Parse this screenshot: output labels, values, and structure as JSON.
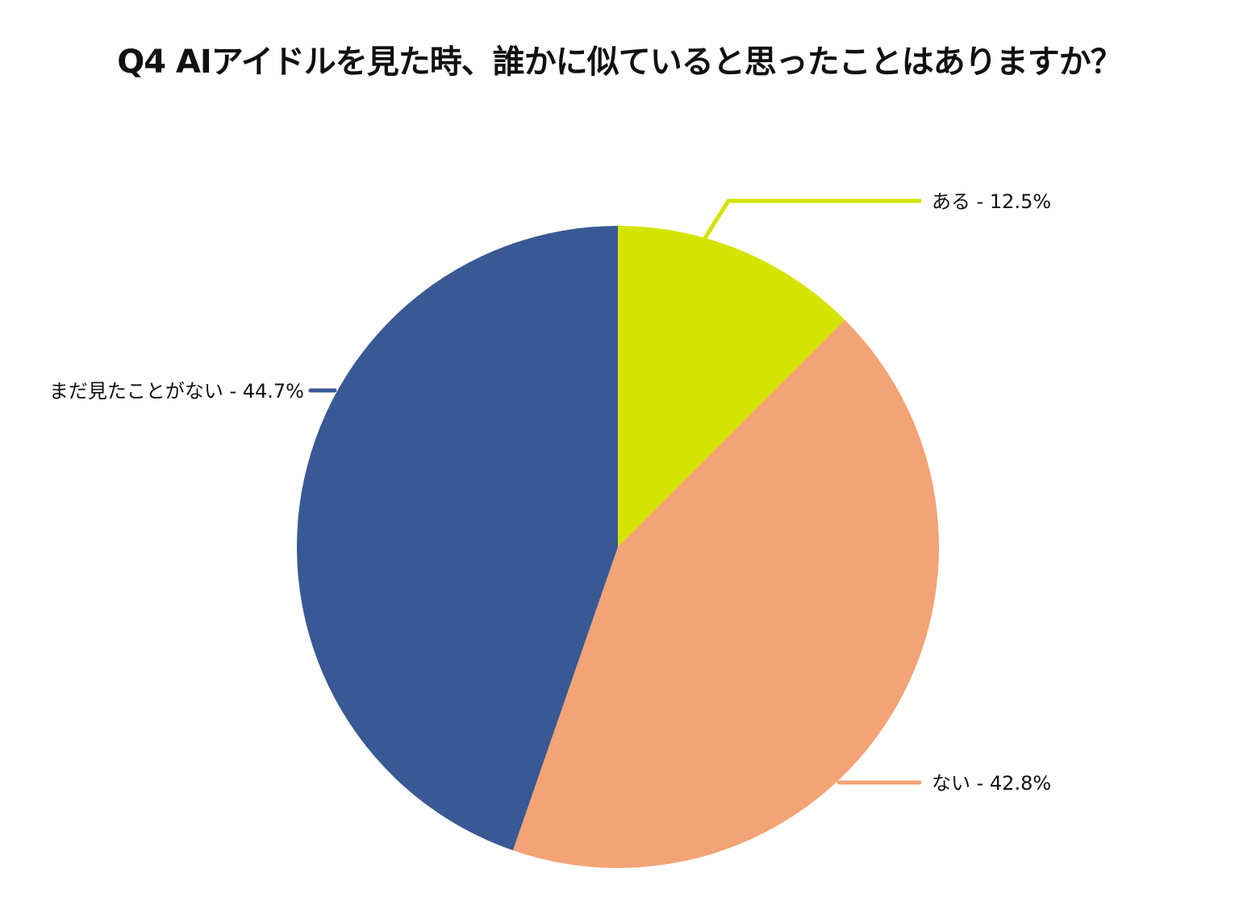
{
  "chart_data": {
    "type": "pie",
    "title": "Q4 AIアイドルを見た時、誰かに似ていると思ったことはありますか？",
    "start": "top",
    "direction": "clockwise",
    "slices": [
      {
        "label": "ある",
        "value": 12.5,
        "display": "ある - 12.5%",
        "color": "#d4e300"
      },
      {
        "label": "ない",
        "value": 42.8,
        "display": "ない - 42.8%",
        "color": "#f3a375"
      },
      {
        "label": "まだ見たことがない",
        "value": 44.7,
        "display": "まだ見たことがない - 44.7%",
        "color": "#385993"
      }
    ]
  }
}
